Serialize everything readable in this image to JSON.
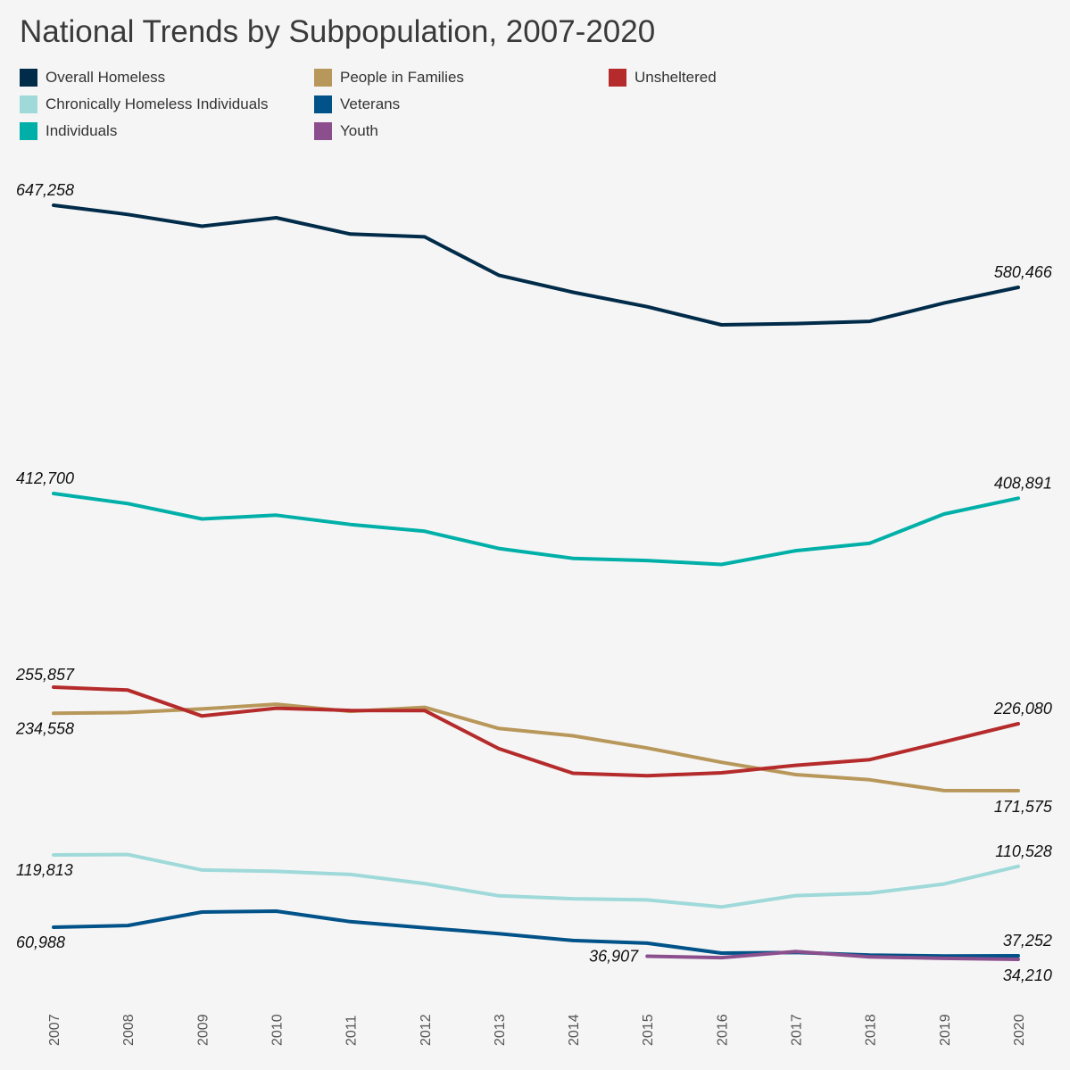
{
  "chart_data": {
    "type": "line",
    "title": "National Trends by Subpopulation, 2007-2020",
    "xlabel": "",
    "ylabel": "",
    "grid": false,
    "legend_position": "top",
    "x": [
      "2007",
      "2008",
      "2009",
      "2010",
      "2011",
      "2012",
      "2013",
      "2014",
      "2015",
      "2016",
      "2017",
      "2018",
      "2019",
      "2020"
    ],
    "ylim": [
      30000,
      650000
    ],
    "series": [
      {
        "name": "Overall Homeless",
        "color": "#002b49",
        "values": [
          647258,
          639784,
          630227,
          637077,
          623788,
          621553,
          590364,
          576450,
          564708,
          549928,
          550996,
          552830,
          567715,
          580466
        ],
        "labels": {
          "0": "647,258",
          "13": "580,466"
        }
      },
      {
        "name": "People in Families",
        "color": "#b8975a",
        "values": [
          234558,
          235219,
          238135,
          241951,
          236181,
          239403,
          222190,
          216261,
          206286,
          194716,
          184661,
          180413,
          171670,
          171575
        ],
        "labels": {
          "0": "234,558",
          "13": "171,575"
        }
      },
      {
        "name": "Unsheltered",
        "color": "#b52b2b",
        "values": [
          255857,
          253435,
          232356,
          238742,
          236911,
          236833,
          205780,
          185765,
          183674,
          186078,
          192204,
          196826,
          211293,
          226080
        ],
        "labels": {
          "0": "255,857",
          "13": "226,080"
        }
      },
      {
        "name": "Chronically Homeless Individuals",
        "color": "#9fd9d9",
        "values": [
          119813,
          120115,
          107574,
          106416,
          103893,
          96520,
          86580,
          84163,
          83225,
          77486,
          86685,
          88640,
          96141,
          110528
        ],
        "labels": {
          "0": "119,813",
          "13": "110,528"
        }
      },
      {
        "name": "Veterans",
        "color": "#005288",
        "values": [
          60988,
          62347,
          73367,
          74087,
          65455,
          60579,
          55619,
          49933,
          47725,
          39471,
          40020,
          37878,
          37085,
          37252
        ],
        "labels": {
          "0": "60,988",
          "13": "37,252"
        }
      },
      {
        "name": "Individuals",
        "color": "#00b0a8",
        "values": [
          412700,
          404525,
          392092,
          395126,
          387607,
          382150,
          368174,
          360189,
          358422,
          355212,
          366335,
          372417,
          396045,
          408891
        ],
        "labels": {
          "0": "412,700",
          "13": "408,891"
        }
      },
      {
        "name": "Youth",
        "color": "#8b4f8e",
        "values": [
          null,
          null,
          null,
          null,
          null,
          null,
          null,
          null,
          36907,
          35686,
          40799,
          36361,
          35038,
          34210
        ],
        "labels": {
          "8": "36,907",
          "13": "34,210"
        }
      }
    ]
  }
}
